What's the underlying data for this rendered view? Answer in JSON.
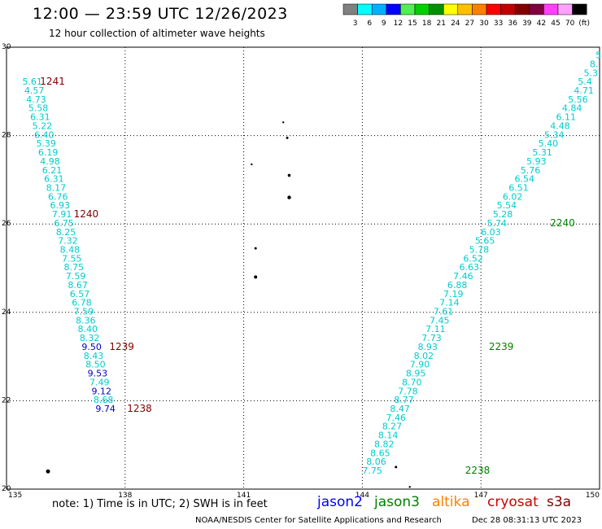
{
  "title": "12:00 — 23:59 UTC 12/26/2023",
  "subtitle": "12 hour collection of altimeter wave heights",
  "scale": {
    "colors": [
      "#808080",
      "#00ffff",
      "#00b0ff",
      "#0000ff",
      "#4ff04f",
      "#00d000",
      "#009000",
      "#ffff00",
      "#ffc000",
      "#ff8000",
      "#ff0000",
      "#c00000",
      "#800000",
      "#800040",
      "#ff40ff",
      "#ffa0ff",
      "#000000"
    ],
    "labels": [
      "3",
      "6",
      "9",
      "12",
      "15",
      "18",
      "21",
      "24",
      "27",
      "30",
      "33",
      "36",
      "39",
      "42",
      "45",
      "70",
      "(ft)"
    ]
  },
  "axes": {
    "lat_ticks": [
      {
        "v": 20,
        "t": "20"
      },
      {
        "v": 22,
        "t": "22"
      },
      {
        "v": 24,
        "t": "24"
      },
      {
        "v": 26,
        "t": "26"
      },
      {
        "v": 28,
        "t": "28"
      },
      {
        "v": 30,
        "t": "30"
      }
    ],
    "lon_ticks": [
      {
        "v": 135,
        "t": "135"
      },
      {
        "v": 138,
        "t": "138"
      },
      {
        "v": 141,
        "t": "141"
      },
      {
        "v": 144,
        "t": "144"
      },
      {
        "v": 147,
        "t": "147"
      },
      {
        "v": 150,
        "t": "150"
      }
    ]
  },
  "chart_data": {
    "type": "scatter",
    "xlim": [
      135,
      150
    ],
    "ylim": [
      20,
      30
    ],
    "grid": true,
    "tracks": [
      {
        "name": "left",
        "points": [
          {
            "x": 135.4,
            "y": 29.15,
            "t": "5.61",
            "c": "#00cccc"
          },
          {
            "x": 135.45,
            "y": 28.95,
            "t": "4.57",
            "c": "#00cccc"
          },
          {
            "x": 135.5,
            "y": 28.75,
            "t": "4.73",
            "c": "#00cccc"
          },
          {
            "x": 135.55,
            "y": 28.55,
            "t": "5.58",
            "c": "#00cccc"
          },
          {
            "x": 135.6,
            "y": 28.35,
            "t": "6.31",
            "c": "#00cccc"
          },
          {
            "x": 135.65,
            "y": 28.15,
            "t": "5.22",
            "c": "#00cccc"
          },
          {
            "x": 135.7,
            "y": 27.95,
            "t": "6.40",
            "c": "#00cccc"
          },
          {
            "x": 135.75,
            "y": 27.75,
            "t": "5.39",
            "c": "#00cccc"
          },
          {
            "x": 135.8,
            "y": 27.55,
            "t": "6.19",
            "c": "#00cccc"
          },
          {
            "x": 135.85,
            "y": 27.35,
            "t": "4.98",
            "c": "#00cccc"
          },
          {
            "x": 135.9,
            "y": 27.15,
            "t": "6.21",
            "c": "#00cccc"
          },
          {
            "x": 135.95,
            "y": 26.95,
            "t": "6.31",
            "c": "#00cccc"
          },
          {
            "x": 136.0,
            "y": 26.75,
            "t": "8.17",
            "c": "#00cccc"
          },
          {
            "x": 136.05,
            "y": 26.55,
            "t": "6.76",
            "c": "#00cccc"
          },
          {
            "x": 136.1,
            "y": 26.35,
            "t": "6.93",
            "c": "#00cccc"
          },
          {
            "x": 136.15,
            "y": 26.15,
            "t": "7.91",
            "c": "#00cccc"
          },
          {
            "x": 136.2,
            "y": 25.95,
            "t": "6.75",
            "c": "#00cccc"
          },
          {
            "x": 136.25,
            "y": 25.75,
            "t": "8.25",
            "c": "#00cccc"
          },
          {
            "x": 136.3,
            "y": 25.55,
            "t": "7.32",
            "c": "#00cccc"
          },
          {
            "x": 136.35,
            "y": 25.35,
            "t": "8.48",
            "c": "#00cccc"
          },
          {
            "x": 136.4,
            "y": 25.15,
            "t": "7.55",
            "c": "#00cccc"
          },
          {
            "x": 136.45,
            "y": 24.95,
            "t": "8.75",
            "c": "#00cccc"
          },
          {
            "x": 136.5,
            "y": 24.75,
            "t": "7.59",
            "c": "#00cccc"
          },
          {
            "x": 136.55,
            "y": 24.55,
            "t": "8.67",
            "c": "#00cccc"
          },
          {
            "x": 136.6,
            "y": 24.35,
            "t": "6.57",
            "c": "#00cccc"
          },
          {
            "x": 136.65,
            "y": 24.15,
            "t": "6.78",
            "c": "#00cccc"
          },
          {
            "x": 136.7,
            "y": 23.95,
            "t": "7.59",
            "c": "#00cccc"
          },
          {
            "x": 136.75,
            "y": 23.75,
            "t": "8.36",
            "c": "#00cccc"
          },
          {
            "x": 136.8,
            "y": 23.55,
            "t": "8.40",
            "c": "#00cccc"
          },
          {
            "x": 136.85,
            "y": 23.35,
            "t": "8.32",
            "c": "#00cccc"
          },
          {
            "x": 136.9,
            "y": 23.15,
            "t": "9.50",
            "c": "#0000cc"
          },
          {
            "x": 136.95,
            "y": 22.95,
            "t": "8.43",
            "c": "#00cccc"
          },
          {
            "x": 137.0,
            "y": 22.75,
            "t": "8.50",
            "c": "#00cccc"
          },
          {
            "x": 137.05,
            "y": 22.55,
            "t": "9.53",
            "c": "#0000cc"
          },
          {
            "x": 137.1,
            "y": 22.35,
            "t": "7.49",
            "c": "#00cccc"
          },
          {
            "x": 137.15,
            "y": 22.15,
            "t": "9.12",
            "c": "#0000cc"
          },
          {
            "x": 137.2,
            "y": 21.95,
            "t": "8.68",
            "c": "#00cccc"
          },
          {
            "x": 137.25,
            "y": 21.75,
            "t": "9.74",
            "c": "#0000cc"
          }
        ]
      },
      {
        "name": "right",
        "points": [
          {
            "x": 149.9,
            "y": 29.75,
            "t": "5",
            "c": "#00cccc"
          },
          {
            "x": 149.75,
            "y": 29.55,
            "t": "8.",
            "c": "#00cccc"
          },
          {
            "x": 149.6,
            "y": 29.35,
            "t": "5.3",
            "c": "#00cccc"
          },
          {
            "x": 149.45,
            "y": 29.15,
            "t": "5.4",
            "c": "#00cccc"
          },
          {
            "x": 149.35,
            "y": 28.95,
            "t": "4.71",
            "c": "#00cccc"
          },
          {
            "x": 149.2,
            "y": 28.75,
            "t": "5.56",
            "c": "#00cccc"
          },
          {
            "x": 149.05,
            "y": 28.55,
            "t": "4.84",
            "c": "#00cccc"
          },
          {
            "x": 148.9,
            "y": 28.35,
            "t": "6.11",
            "c": "#00cccc"
          },
          {
            "x": 148.75,
            "y": 28.15,
            "t": "4.48",
            "c": "#00cccc"
          },
          {
            "x": 148.6,
            "y": 27.95,
            "t": "5.34",
            "c": "#00cccc"
          },
          {
            "x": 148.45,
            "y": 27.75,
            "t": "5.40",
            "c": "#00cccc"
          },
          {
            "x": 148.3,
            "y": 27.55,
            "t": "5.31",
            "c": "#00cccc"
          },
          {
            "x": 148.15,
            "y": 27.35,
            "t": "5.93",
            "c": "#00cccc"
          },
          {
            "x": 148.0,
            "y": 27.15,
            "t": "5.76",
            "c": "#00cccc"
          },
          {
            "x": 147.85,
            "y": 26.95,
            "t": "6.54",
            "c": "#00cccc"
          },
          {
            "x": 147.7,
            "y": 26.75,
            "t": "6.51",
            "c": "#00cccc"
          },
          {
            "x": 147.55,
            "y": 26.55,
            "t": "6.02",
            "c": "#00cccc"
          },
          {
            "x": 147.4,
            "y": 26.35,
            "t": "5.54",
            "c": "#00cccc"
          },
          {
            "x": 147.3,
            "y": 26.15,
            "t": "5.28",
            "c": "#00cccc"
          },
          {
            "x": 147.15,
            "y": 25.95,
            "t": "5.74",
            "c": "#00cccc"
          },
          {
            "x": 147.0,
            "y": 25.75,
            "t": "6.03",
            "c": "#00cccc"
          },
          {
            "x": 146.85,
            "y": 25.55,
            "t": "5.65",
            "c": "#00cccc"
          },
          {
            "x": 146.7,
            "y": 25.35,
            "t": "5.78",
            "c": "#00cccc"
          },
          {
            "x": 146.55,
            "y": 25.15,
            "t": "6.52",
            "c": "#00cccc"
          },
          {
            "x": 146.45,
            "y": 24.95,
            "t": "6.63",
            "c": "#00cccc"
          },
          {
            "x": 146.3,
            "y": 24.75,
            "t": "7.46",
            "c": "#00cccc"
          },
          {
            "x": 146.15,
            "y": 24.55,
            "t": "6.88",
            "c": "#00cccc"
          },
          {
            "x": 146.05,
            "y": 24.35,
            "t": "7.19",
            "c": "#00cccc"
          },
          {
            "x": 145.95,
            "y": 24.15,
            "t": "7.14",
            "c": "#00cccc"
          },
          {
            "x": 145.8,
            "y": 23.95,
            "t": "7.61",
            "c": "#00cccc"
          },
          {
            "x": 145.7,
            "y": 23.75,
            "t": "7.45",
            "c": "#00cccc"
          },
          {
            "x": 145.6,
            "y": 23.55,
            "t": "7.11",
            "c": "#00cccc"
          },
          {
            "x": 145.5,
            "y": 23.35,
            "t": "7.73",
            "c": "#00cccc"
          },
          {
            "x": 145.4,
            "y": 23.15,
            "t": "8.93",
            "c": "#00cccc"
          },
          {
            "x": 145.3,
            "y": 22.95,
            "t": "8.02",
            "c": "#00cccc"
          },
          {
            "x": 145.2,
            "y": 22.75,
            "t": "7.90",
            "c": "#00cccc"
          },
          {
            "x": 145.1,
            "y": 22.55,
            "t": "8.95",
            "c": "#00cccc"
          },
          {
            "x": 145.0,
            "y": 22.35,
            "t": "8.70",
            "c": "#00cccc"
          },
          {
            "x": 144.9,
            "y": 22.15,
            "t": "7.78",
            "c": "#00cccc"
          },
          {
            "x": 144.8,
            "y": 21.95,
            "t": "8.77",
            "c": "#00cccc"
          },
          {
            "x": 144.7,
            "y": 21.75,
            "t": "8.47",
            "c": "#00cccc"
          },
          {
            "x": 144.6,
            "y": 21.55,
            "t": "7.46",
            "c": "#00cccc"
          },
          {
            "x": 144.5,
            "y": 21.35,
            "t": "8.27",
            "c": "#00cccc"
          },
          {
            "x": 144.4,
            "y": 21.15,
            "t": "8.14",
            "c": "#00cccc"
          },
          {
            "x": 144.3,
            "y": 20.95,
            "t": "8.82",
            "c": "#00cccc"
          },
          {
            "x": 144.2,
            "y": 20.75,
            "t": "8.65",
            "c": "#00cccc"
          },
          {
            "x": 144.1,
            "y": 20.55,
            "t": "8.06",
            "c": "#00cccc"
          },
          {
            "x": 144.0,
            "y": 20.35,
            "t": "7.75",
            "c": "#00cccc"
          }
        ]
      }
    ],
    "times": [
      {
        "x": 135.85,
        "y": 29.15,
        "t": "1241",
        "c": "#800000"
      },
      {
        "x": 136.7,
        "y": 26.15,
        "t": "1240",
        "c": "#800000"
      },
      {
        "x": 137.6,
        "y": 23.15,
        "t": "1239",
        "c": "#800000"
      },
      {
        "x": 138.05,
        "y": 21.75,
        "t": "1238",
        "c": "#800000"
      },
      {
        "x": 148.75,
        "y": 25.95,
        "t": "2240",
        "c": "#008000"
      },
      {
        "x": 147.2,
        "y": 23.15,
        "t": "2239",
        "c": "#008000"
      },
      {
        "x": 146.6,
        "y": 20.35,
        "t": "2238",
        "c": "#008000"
      }
    ],
    "land": [
      {
        "x": 142.0,
        "y": 28.3,
        "r": 1.2
      },
      {
        "x": 142.1,
        "y": 27.95,
        "r": 1.5
      },
      {
        "x": 142.15,
        "y": 27.1,
        "r": 1.8
      },
      {
        "x": 142.15,
        "y": 26.6,
        "r": 2.2
      },
      {
        "x": 141.2,
        "y": 27.35,
        "r": 1.2
      },
      {
        "x": 141.3,
        "y": 25.45,
        "r": 1.5
      },
      {
        "x": 141.3,
        "y": 24.8,
        "r": 2
      },
      {
        "x": 136.05,
        "y": 20.4,
        "r": 2.5
      },
      {
        "x": 144.85,
        "y": 20.5,
        "r": 1.5
      },
      {
        "x": 145.2,
        "y": 20.05,
        "r": 1.2
      }
    ]
  },
  "note": "note: 1) Time is in UTC; 2) SWH is in feet",
  "satellites": [
    {
      "name": "jason2",
      "color": "#0000ff"
    },
    {
      "name": "jason3",
      "color": "#008000"
    },
    {
      "name": "altika",
      "color": "#ff8000"
    },
    {
      "name": "cryosat",
      "color": "#cc0000"
    },
    {
      "name": "s3a",
      "color": "#800000"
    }
  ],
  "credit": "NOAA/NESDIS Center for Satellite Applications and Research",
  "stamp": "Dec 28 08:31:13 UTC 2023"
}
